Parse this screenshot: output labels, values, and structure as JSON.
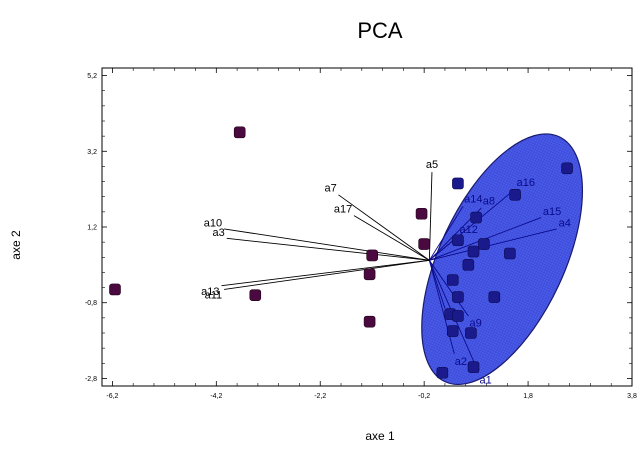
{
  "chart_data": {
    "type": "scatter",
    "title": "PCA",
    "xlabel": "axe 1",
    "ylabel": "axe 2",
    "xlim": [
      -6.4,
      3.8
    ],
    "ylim": [
      -3.0,
      5.4
    ],
    "xticks": [
      -6.2,
      -4.2,
      -2.2,
      -0.2,
      1.8,
      3.8
    ],
    "xtick_labels": [
      "-6,2",
      "-4,2",
      "-2,2",
      "-0,2",
      "1,8",
      "3,8"
    ],
    "yticks": [
      -2.8,
      -0.8,
      1.2,
      3.2,
      5.2
    ],
    "ytick_labels": [
      "-2,8",
      "-0,8",
      "1,2",
      "3,2",
      "5,2"
    ],
    "origin": [
      -0.1,
      0.32
    ],
    "vectors": [
      {
        "name": "a1",
        "x": 0.85,
        "y": -2.65
      },
      {
        "name": "a2",
        "x": 0.38,
        "y": -2.15
      },
      {
        "name": "a9",
        "x": 0.65,
        "y": -1.15
      },
      {
        "name": "a6",
        "x": 0.2,
        "y": -0.95
      },
      {
        "name": "a5",
        "x": -0.05,
        "y": 2.65
      },
      {
        "name": "a14",
        "x": 0.55,
        "y": 1.75
      },
      {
        "name": "a8",
        "x": 0.9,
        "y": 1.7
      },
      {
        "name": "a16",
        "x": 1.55,
        "y": 2.2
      },
      {
        "name": "a15",
        "x": 2.05,
        "y": 1.45
      },
      {
        "name": "a4",
        "x": 2.35,
        "y": 1.15
      },
      {
        "name": "a12",
        "x": 0.45,
        "y": 0.95
      },
      {
        "name": "a7",
        "x": -1.85,
        "y": 2.05
      },
      {
        "name": "a17",
        "x": -1.55,
        "y": 1.5
      },
      {
        "name": "a10",
        "x": -4.05,
        "y": 1.15
      },
      {
        "name": "a3",
        "x": -4.0,
        "y": 0.9
      },
      {
        "name": "a13",
        "x": -4.1,
        "y": -0.35
      },
      {
        "name": "a11",
        "x": -4.05,
        "y": -0.45
      }
    ],
    "series": [
      {
        "color": "#4a0a40",
        "points": [
          [
            -3.75,
            3.7
          ],
          [
            -6.15,
            -0.45
          ],
          [
            -3.45,
            -0.6
          ],
          [
            -1.2,
            0.45
          ],
          [
            -1.25,
            -0.05
          ],
          [
            -1.25,
            -1.3
          ],
          [
            -0.25,
            1.55
          ],
          [
            -0.2,
            0.75
          ]
        ]
      },
      {
        "color": "#1a1a8c",
        "points": [
          [
            0.15,
            -2.65
          ],
          [
            0.45,
            2.35
          ],
          [
            2.55,
            2.75
          ],
          [
            1.55,
            2.05
          ],
          [
            0.8,
            1.45
          ],
          [
            0.45,
            0.85
          ],
          [
            0.95,
            0.75
          ],
          [
            0.75,
            0.55
          ],
          [
            0.65,
            0.2
          ],
          [
            1.45,
            0.5
          ],
          [
            0.35,
            -0.2
          ],
          [
            0.45,
            -0.65
          ],
          [
            0.3,
            -1.1
          ],
          [
            0.45,
            -1.15
          ],
          [
            1.15,
            -0.65
          ],
          [
            0.35,
            -1.55
          ],
          [
            0.7,
            -1.6
          ],
          [
            0.75,
            -2.5
          ]
        ]
      }
    ],
    "ellipse": {
      "cx": 1.3,
      "cy": 0.35,
      "rx": 2.6,
      "ry": 1.2,
      "rotation_deg": -65,
      "fill": "#4a5be8",
      "stroke": "#1a1a6e"
    }
  }
}
